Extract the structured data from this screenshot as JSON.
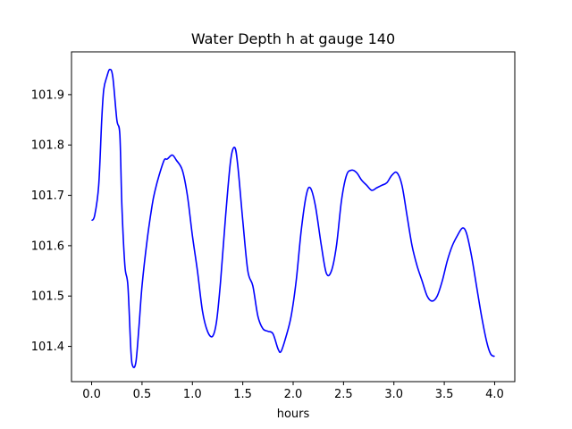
{
  "chart_data": {
    "type": "line",
    "title": "Water Depth h at gauge 140",
    "xlabel": "hours",
    "ylabel": "",
    "xlim": [
      -0.2,
      4.2
    ],
    "ylim": [
      101.33,
      101.985
    ],
    "xticks": [
      0.0,
      0.5,
      1.0,
      1.5,
      2.0,
      2.5,
      3.0,
      3.5,
      4.0
    ],
    "xtick_labels": [
      "0.0",
      "0.5",
      "1.0",
      "1.5",
      "2.0",
      "2.5",
      "3.0",
      "3.5",
      "4.0"
    ],
    "yticks": [
      101.4,
      101.5,
      101.6,
      101.7,
      101.8,
      101.9
    ],
    "ytick_labels": [
      "101.4",
      "101.5",
      "101.6",
      "101.7",
      "101.8",
      "101.9"
    ],
    "grid": false,
    "legend": "none",
    "series": [
      {
        "color": "#0000ff",
        "x": [
          0.0,
          0.03,
          0.07,
          0.1,
          0.12,
          0.15,
          0.18,
          0.21,
          0.25,
          0.28,
          0.3,
          0.33,
          0.36,
          0.39,
          0.41,
          0.44,
          0.47,
          0.5,
          0.55,
          0.6,
          0.63,
          0.67,
          0.72,
          0.75,
          0.8,
          0.84,
          0.9,
          0.95,
          1.0,
          1.05,
          1.1,
          1.15,
          1.2,
          1.24,
          1.28,
          1.33,
          1.38,
          1.42,
          1.45,
          1.5,
          1.55,
          1.6,
          1.65,
          1.7,
          1.75,
          1.8,
          1.85,
          1.88,
          1.93,
          1.98,
          2.03,
          2.08,
          2.13,
          2.17,
          2.22,
          2.28,
          2.33,
          2.38,
          2.43,
          2.48,
          2.53,
          2.58,
          2.63,
          2.68,
          2.73,
          2.78,
          2.83,
          2.88,
          2.93,
          2.98,
          3.03,
          3.08,
          3.13,
          3.18,
          3.23,
          3.28,
          3.33,
          3.38,
          3.43,
          3.48,
          3.53,
          3.58,
          3.63,
          3.68,
          3.72,
          3.77,
          3.82,
          3.87,
          3.92,
          3.96,
          4.0
        ],
        "values": [
          101.65,
          101.66,
          101.72,
          101.85,
          101.91,
          101.935,
          101.95,
          101.935,
          101.85,
          101.82,
          101.68,
          101.56,
          101.52,
          101.39,
          101.36,
          101.37,
          101.44,
          101.52,
          101.61,
          101.68,
          101.71,
          101.74,
          101.77,
          101.772,
          101.78,
          101.77,
          101.75,
          101.7,
          101.62,
          101.55,
          101.47,
          101.43,
          101.42,
          101.45,
          101.53,
          101.66,
          101.77,
          101.795,
          101.76,
          101.65,
          101.55,
          101.52,
          101.46,
          101.435,
          101.43,
          101.425,
          101.395,
          101.39,
          101.42,
          101.46,
          101.53,
          101.63,
          101.7,
          101.715,
          101.68,
          101.6,
          101.545,
          101.55,
          101.6,
          101.69,
          101.74,
          101.75,
          101.745,
          101.73,
          101.72,
          101.71,
          101.715,
          101.72,
          101.725,
          101.74,
          101.745,
          101.72,
          101.66,
          101.6,
          101.56,
          101.53,
          101.5,
          101.49,
          101.5,
          101.53,
          101.57,
          101.6,
          101.62,
          101.635,
          101.625,
          101.58,
          101.52,
          101.46,
          101.41,
          101.385,
          101.38
        ]
      }
    ]
  }
}
